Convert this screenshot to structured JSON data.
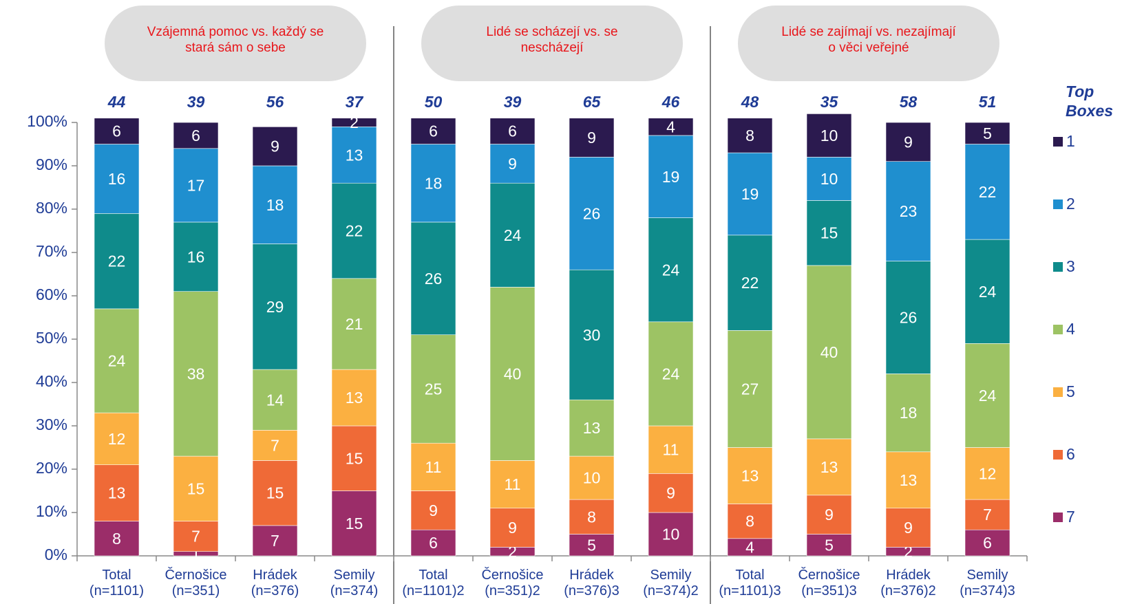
{
  "chart_data": {
    "type": "stacked_bar",
    "categories": [
      "Total\n(n=1101)",
      "Černošice\n(n=351)",
      "Hrádek\n(n=376)",
      "Semily\n(n=374)",
      "Total\n(n=1101)2",
      "Černošice\n(n=351)2",
      "Hrádek\n(n=376)3",
      "Semily\n(n=374)2",
      "Total\n(n=1101)3",
      "Černošice\n(n=351)3",
      "Hrádek\n(n=376)2",
      "Semily\n(n=374)3"
    ],
    "groups": [
      {
        "label": "Vzájemná pomoc vs. každý se\nstará sám o sebe",
        "span": [
          0,
          4
        ]
      },
      {
        "label": "Lidé se scházejí vs. se\nnescházejí",
        "span": [
          4,
          8
        ]
      },
      {
        "label": "Lidé se zajímají vs. nezajímají\no věci veřejné",
        "span": [
          8,
          12
        ]
      }
    ],
    "top_boxes_title": "Top\nBoxes",
    "top_boxes": [
      44,
      39,
      56,
      37,
      50,
      39,
      65,
      46,
      48,
      35,
      58,
      51
    ],
    "series": [
      {
        "name": "7",
        "color": "#9b2d69",
        "values": [
          8,
          1,
          7,
          15,
          6,
          2,
          5,
          10,
          4,
          5,
          2,
          6
        ]
      },
      {
        "name": "6",
        "color": "#ef6a37",
        "values": [
          13,
          7,
          15,
          15,
          9,
          9,
          8,
          9,
          8,
          9,
          9,
          7
        ]
      },
      {
        "name": "5",
        "color": "#fbb041",
        "values": [
          12,
          15,
          7,
          13,
          11,
          11,
          10,
          11,
          13,
          13,
          13,
          12
        ]
      },
      {
        "name": "4",
        "color": "#9dc364",
        "values": [
          24,
          38,
          14,
          21,
          25,
          40,
          13,
          24,
          27,
          40,
          18,
          24
        ]
      },
      {
        "name": "3",
        "color": "#0f8b8b",
        "values": [
          22,
          16,
          29,
          22,
          26,
          24,
          30,
          24,
          22,
          15,
          26,
          24
        ]
      },
      {
        "name": "2",
        "color": "#1f8fcf",
        "values": [
          16,
          17,
          18,
          13,
          18,
          9,
          26,
          19,
          19,
          10,
          23,
          22
        ]
      },
      {
        "name": "1",
        "color": "#2b1a4f",
        "values": [
          6,
          6,
          9,
          2,
          6,
          6,
          9,
          4,
          8,
          10,
          9,
          5
        ]
      }
    ],
    "ylim": [
      0,
      100
    ],
    "yticks": [
      {
        "value": 0,
        "label": "0%"
      },
      {
        "value": 10,
        "label": "10%"
      },
      {
        "value": 20,
        "label": "20%"
      },
      {
        "value": 30,
        "label": "30%"
      },
      {
        "value": 40,
        "label": "40%"
      },
      {
        "value": 50,
        "label": "50%"
      },
      {
        "value": 60,
        "label": "60%"
      },
      {
        "value": 70,
        "label": "70%"
      },
      {
        "value": 80,
        "label": "80%"
      },
      {
        "value": 90,
        "label": "90%"
      },
      {
        "value": 100,
        "label": "100%"
      }
    ],
    "grid": false
  }
}
